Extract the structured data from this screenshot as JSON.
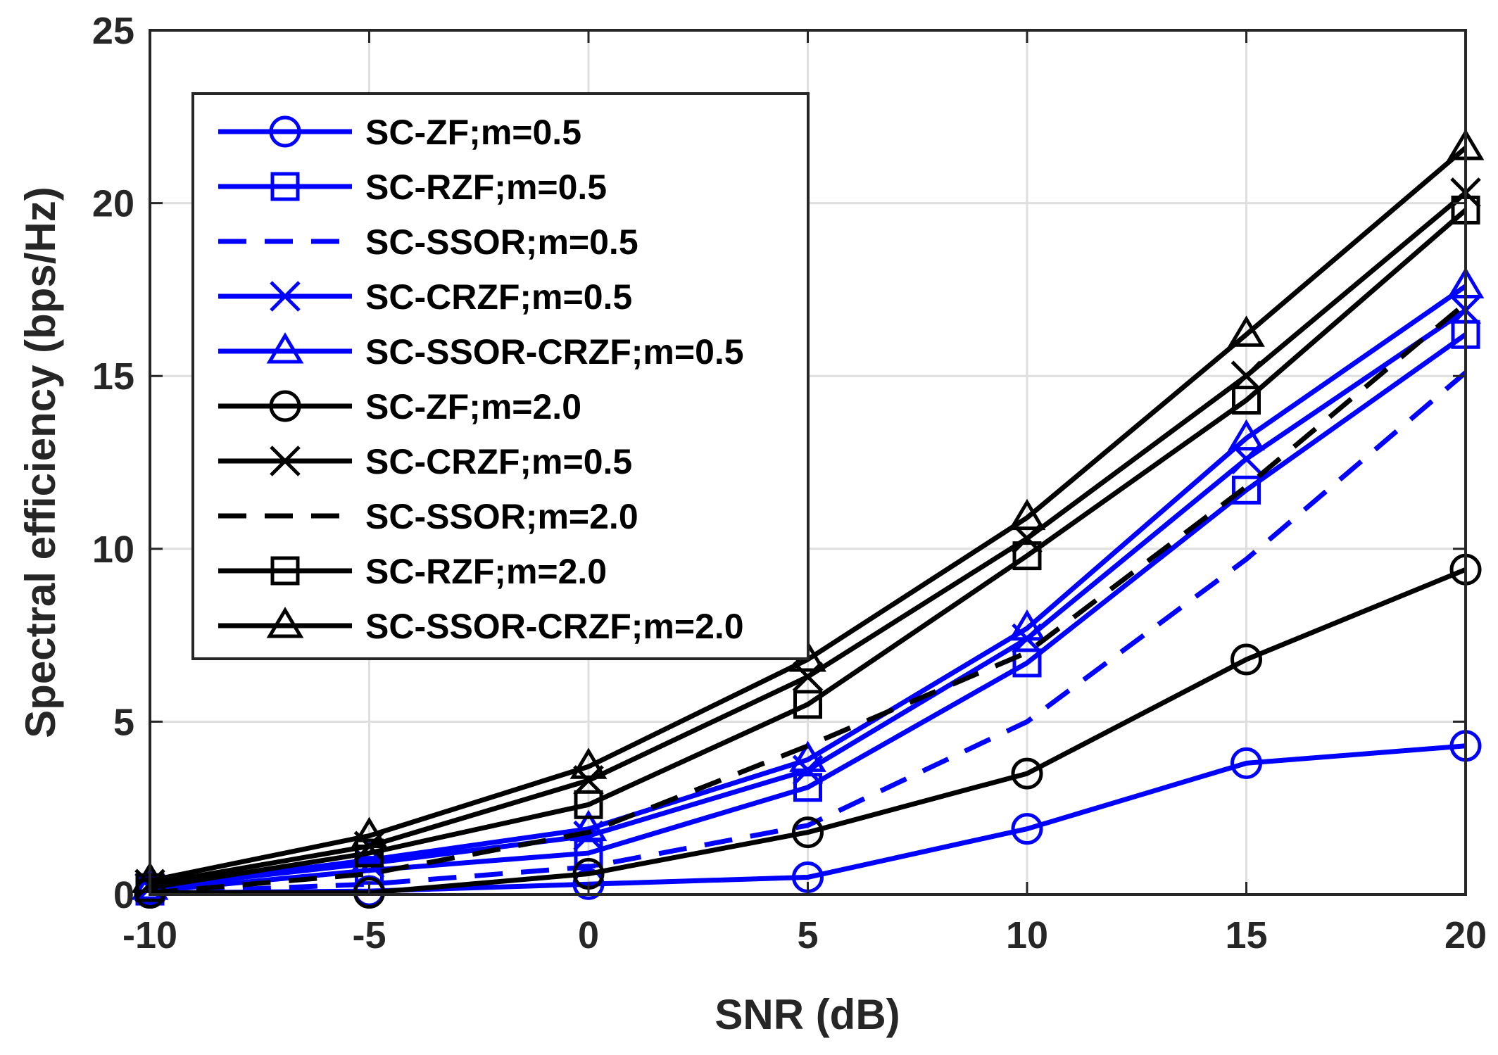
{
  "chart_data": {
    "type": "line",
    "title": "",
    "xlabel": "SNR (dB)",
    "ylabel": "Spectral efficiency (bps/Hz)",
    "xlim": [
      -10,
      20
    ],
    "ylim": [
      0,
      25
    ],
    "xticks": [
      -10,
      -5,
      0,
      5,
      10,
      15,
      20
    ],
    "yticks": [
      0,
      5,
      10,
      15,
      20,
      25
    ],
    "grid": true,
    "legend_position": "upper-left",
    "x": [
      -10,
      -5,
      0,
      5,
      10,
      15,
      20
    ],
    "series": [
      {
        "name": "SC-ZF;m=0.5",
        "color": "#0000ff",
        "dash": "solid",
        "marker": "circle",
        "values": [
          0.05,
          0.1,
          0.3,
          0.5,
          1.9,
          3.8,
          4.3
        ]
      },
      {
        "name": "SC-RZF;m=0.5",
        "color": "#0000ff",
        "dash": "solid",
        "marker": "square",
        "values": [
          0.1,
          0.7,
          1.2,
          3.1,
          6.7,
          11.7,
          16.2
        ]
      },
      {
        "name": "SC-SSOR;m=0.5",
        "color": "#0000ff",
        "dash": "dashed",
        "marker": "none",
        "values": [
          0.05,
          0.3,
          0.8,
          2.0,
          5.0,
          9.7,
          15.1
        ]
      },
      {
        "name": "SC-CRZF;m=0.5",
        "color": "#0000ff",
        "dash": "solid",
        "marker": "x",
        "values": [
          0.2,
          0.9,
          1.7,
          3.6,
          7.4,
          12.6,
          16.9
        ]
      },
      {
        "name": "SC-SSOR-CRZF;m=0.5",
        "color": "#0000ff",
        "dash": "solid",
        "marker": "triangle",
        "values": [
          0.2,
          1.0,
          1.9,
          3.9,
          7.7,
          13.2,
          17.6
        ]
      },
      {
        "name": "SC-ZF;m=2.0",
        "color": "#000000",
        "dash": "solid",
        "marker": "circle",
        "values": [
          0.05,
          0.05,
          0.6,
          1.8,
          3.5,
          6.8,
          9.4
        ]
      },
      {
        "name": "SC-CRZF;m=0.5",
        "color": "#000000",
        "dash": "solid",
        "marker": "x",
        "values": [
          0.3,
          1.4,
          3.3,
          6.3,
          10.3,
          15.0,
          20.3
        ]
      },
      {
        "name": "SC-SSOR;m=2.0",
        "color": "#000000",
        "dash": "dashed",
        "marker": "none",
        "values": [
          0.05,
          0.6,
          1.8,
          4.3,
          7.0,
          11.8,
          17.1
        ]
      },
      {
        "name": "SC-RZF;m=2.0",
        "color": "#000000",
        "dash": "solid",
        "marker": "square",
        "values": [
          0.2,
          1.2,
          2.6,
          5.5,
          9.8,
          14.3,
          19.8
        ]
      },
      {
        "name": "SC-SSOR-CRZF;m=2.0",
        "color": "#000000",
        "dash": "solid",
        "marker": "triangle",
        "values": [
          0.4,
          1.7,
          3.7,
          6.8,
          10.9,
          16.2,
          21.6
        ]
      }
    ]
  }
}
